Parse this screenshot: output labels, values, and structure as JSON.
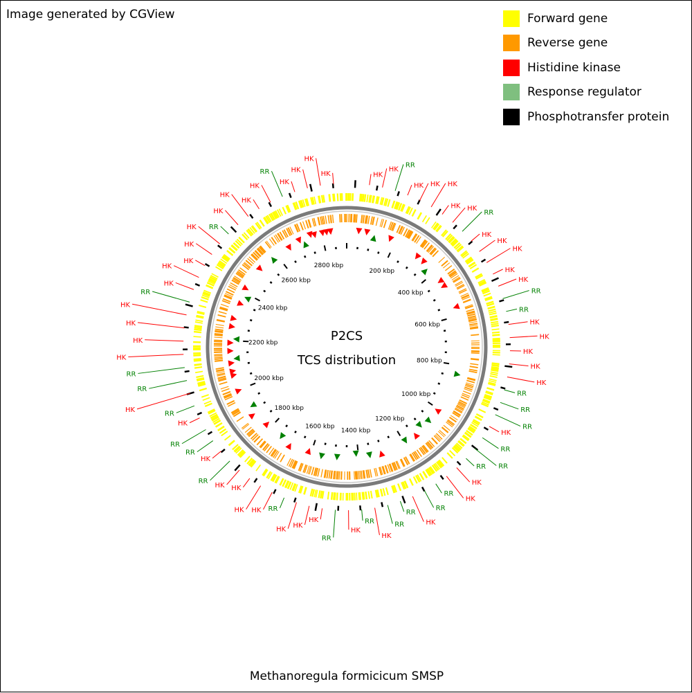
{
  "credit": "Image generated by CGView",
  "center": {
    "line1": "P2CS",
    "line2": "TCS distribution"
  },
  "organism": "Methanoregula formicicum SMSP",
  "legend": [
    {
      "label": "Forward gene",
      "color": "#ffff00"
    },
    {
      "label": "Reverse gene",
      "color": "#ff9900"
    },
    {
      "label": "Histidine kinase",
      "color": "#ff0000"
    },
    {
      "label": "Response regulator",
      "color": "#7fbf7f"
    },
    {
      "label": "Phosphotransfer protein",
      "color": "#000000"
    }
  ],
  "ticks": [
    "200 kbp",
    "400 kbp",
    "600 kbp",
    "800 kbp",
    "1000 kbp",
    "1200 kbp",
    "1400 kbp",
    "1600 kbp",
    "1800 kbp",
    "2000 kbp",
    "2200 kbp",
    "2400 kbp",
    "2600 kbp",
    "2800 kbp"
  ],
  "features": [
    {
      "label": "HK",
      "type": "hk"
    },
    {
      "label": "HK",
      "type": "hk"
    },
    {
      "label": "RR",
      "type": "rr"
    },
    {
      "label": "HK",
      "type": "hk"
    },
    {
      "label": "HK",
      "type": "hk"
    },
    {
      "label": "HK",
      "type": "hk"
    },
    {
      "label": "HK",
      "type": "hk"
    },
    {
      "label": "HK",
      "type": "hk"
    },
    {
      "label": "RR",
      "type": "rr"
    },
    {
      "label": "HK",
      "type": "hk"
    },
    {
      "label": "HK",
      "type": "hk"
    },
    {
      "label": "HK",
      "type": "hk"
    },
    {
      "label": "HK",
      "type": "hk"
    },
    {
      "label": "HK",
      "type": "hk"
    },
    {
      "label": "RR",
      "type": "rr"
    },
    {
      "label": "RR",
      "type": "rr"
    },
    {
      "label": "HK",
      "type": "hk"
    },
    {
      "label": "HK",
      "type": "hk"
    },
    {
      "label": "HK",
      "type": "hk"
    },
    {
      "label": "HK",
      "type": "hk"
    },
    {
      "label": "HK",
      "type": "hk"
    },
    {
      "label": "RR",
      "type": "rr"
    },
    {
      "label": "RR",
      "type": "rr"
    },
    {
      "label": "RR",
      "type": "rr"
    },
    {
      "label": "HK",
      "type": "hk"
    },
    {
      "label": "RR",
      "type": "rr"
    },
    {
      "label": "RR",
      "type": "rr"
    },
    {
      "label": "RR",
      "type": "rr"
    },
    {
      "label": "HK",
      "type": "hk"
    },
    {
      "label": "HK",
      "type": "hk"
    },
    {
      "label": "RR",
      "type": "rr"
    },
    {
      "label": "RR",
      "type": "rr"
    },
    {
      "label": "HK",
      "type": "hk"
    },
    {
      "label": "RR",
      "type": "rr"
    },
    {
      "label": "RR",
      "type": "rr"
    },
    {
      "label": "HK",
      "type": "hk"
    },
    {
      "label": "RR",
      "type": "rr"
    },
    {
      "label": "HK",
      "type": "hk"
    },
    {
      "label": "RR",
      "type": "rr"
    },
    {
      "label": "HK",
      "type": "hk"
    },
    {
      "label": "HK",
      "type": "hk"
    },
    {
      "label": "HK",
      "type": "hk"
    },
    {
      "label": "RR",
      "type": "rr"
    },
    {
      "label": "HK",
      "type": "hk"
    },
    {
      "label": "HK",
      "type": "hk"
    },
    {
      "label": "HK",
      "type": "hk"
    },
    {
      "label": "HK",
      "type": "hk"
    },
    {
      "label": "RR",
      "type": "rr"
    },
    {
      "label": "HK",
      "type": "hk"
    },
    {
      "label": "RR",
      "type": "rr"
    },
    {
      "label": "RR",
      "type": "rr"
    },
    {
      "label": "HK",
      "type": "hk"
    },
    {
      "label": "RR",
      "type": "rr"
    },
    {
      "label": "HK",
      "type": "hk"
    },
    {
      "label": "RR",
      "type": "rr"
    },
    {
      "label": "RR",
      "type": "rr"
    },
    {
      "label": "HK",
      "type": "hk"
    },
    {
      "label": "HK",
      "type": "hk"
    },
    {
      "label": "HK",
      "type": "hk"
    },
    {
      "label": "HK",
      "type": "hk"
    },
    {
      "label": "RR",
      "type": "rr"
    },
    {
      "label": "HK",
      "type": "hk"
    },
    {
      "label": "HK",
      "type": "hk"
    },
    {
      "label": "HK",
      "type": "hk"
    },
    {
      "label": "HK",
      "type": "hk"
    },
    {
      "label": "HK",
      "type": "hk"
    },
    {
      "label": "RR",
      "type": "rr"
    },
    {
      "label": "HK",
      "type": "hk"
    },
    {
      "label": "HK",
      "type": "hk"
    },
    {
      "label": "HK",
      "type": "hk"
    },
    {
      "label": "HK",
      "type": "hk"
    },
    {
      "label": "RR",
      "type": "rr"
    },
    {
      "label": "HK",
      "type": "hk"
    },
    {
      "label": "HK",
      "type": "hk"
    },
    {
      "label": "HK",
      "type": "hk"
    },
    {
      "label": "HK",
      "type": "hk"
    }
  ]
}
